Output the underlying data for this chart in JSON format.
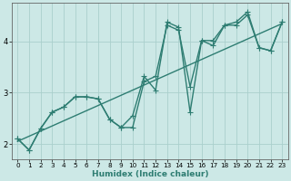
{
  "xlabel": "Humidex (Indice chaleur)",
  "bg_color": "#cce8e6",
  "line_color": "#2e7d72",
  "grid_color": "#aacfcc",
  "xlim": [
    -0.5,
    23.5
  ],
  "ylim": [
    1.7,
    4.75
  ],
  "xticks": [
    0,
    1,
    2,
    3,
    4,
    5,
    6,
    7,
    8,
    9,
    10,
    11,
    12,
    13,
    14,
    15,
    16,
    17,
    18,
    19,
    20,
    21,
    22,
    23
  ],
  "yticks": [
    2,
    3,
    4
  ],
  "series": [
    {
      "x": [
        0,
        23
      ],
      "y": [
        2.05,
        4.35
      ],
      "marker": false,
      "linewidth": 1.0
    },
    {
      "x": [
        0,
        1,
        2,
        3,
        4,
        5,
        6,
        7,
        8,
        9,
        10,
        11,
        12,
        13,
        14,
        15,
        16,
        17,
        18,
        19,
        20,
        21,
        22,
        23
      ],
      "y": [
        2.1,
        1.88,
        2.3,
        2.62,
        2.72,
        2.92,
        2.92,
        2.88,
        2.48,
        2.32,
        2.32,
        3.22,
        3.32,
        4.32,
        4.22,
        3.12,
        4.02,
        4.02,
        4.32,
        4.32,
        4.52,
        3.88,
        3.82,
        4.38
      ],
      "marker": true,
      "markersize": 2.5,
      "linewidth": 1.0
    },
    {
      "x": [
        0,
        1,
        2,
        3,
        4,
        5,
        6,
        7,
        8,
        9,
        10,
        11,
        12,
        13,
        14,
        15,
        16,
        17,
        18,
        19,
        20,
        21,
        22,
        23
      ],
      "y": [
        2.1,
        1.88,
        2.3,
        2.62,
        2.72,
        2.92,
        2.92,
        2.88,
        2.48,
        2.32,
        2.55,
        3.32,
        3.05,
        4.38,
        4.28,
        2.62,
        4.02,
        3.92,
        4.32,
        4.38,
        4.58,
        3.88,
        3.82,
        4.38
      ],
      "marker": true,
      "markersize": 2.5,
      "linewidth": 1.0
    }
  ]
}
